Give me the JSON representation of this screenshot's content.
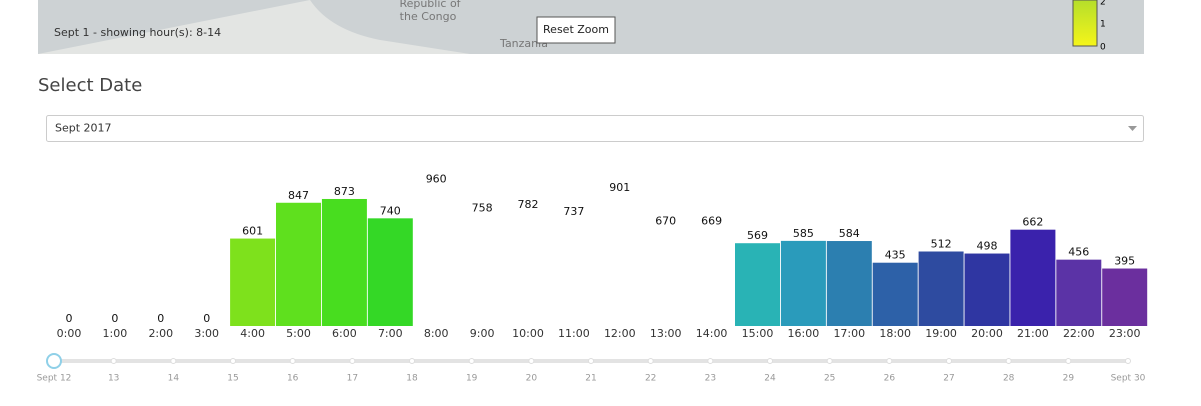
{
  "map": {
    "status": "Sept 1 - showing hour(s): 8-14",
    "button": "Reset Zoom",
    "labels": [
      "Republic of",
      "the Congo",
      "Tanzania"
    ],
    "legend": [
      "2",
      "1",
      "0"
    ]
  },
  "section_title": "Select Date",
  "dropdown": {
    "value": "Sept 2017"
  },
  "chart_data": {
    "type": "bar",
    "categories": [
      "0:00",
      "1:00",
      "2:00",
      "3:00",
      "4:00",
      "5:00",
      "6:00",
      "7:00",
      "8:00",
      "9:00",
      "10:00",
      "11:00",
      "12:00",
      "13:00",
      "14:00",
      "15:00",
      "16:00",
      "17:00",
      "18:00",
      "19:00",
      "20:00",
      "21:00",
      "22:00",
      "23:00"
    ],
    "values": [
      0,
      0,
      0,
      0,
      601,
      847,
      873,
      740,
      960,
      758,
      782,
      737,
      901,
      670,
      669,
      569,
      585,
      584,
      435,
      512,
      498,
      662,
      456,
      395
    ],
    "colors": [
      "#ffffff",
      "#ffffff",
      "#ffffff",
      "#ffffff",
      "#7ee11c",
      "#5fe01e",
      "#48dd1f",
      "#34d826",
      "#ffffff",
      "#ffffff",
      "#ffffff",
      "#ffffff",
      "#ffffff",
      "#ffffff",
      "#ffffff",
      "#29b3b5",
      "#2a9bbb",
      "#2c7fb0",
      "#2d61a8",
      "#2e4ba0",
      "#2f36a2",
      "#3a22ac",
      "#5b33a6",
      "#6b2f9e"
    ]
  },
  "slider": {
    "labels": [
      "Sept 12",
      "13",
      "14",
      "15",
      "16",
      "17",
      "18",
      "19",
      "20",
      "21",
      "22",
      "23",
      "24",
      "25",
      "26",
      "27",
      "28",
      "29",
      "Sept 30"
    ]
  }
}
